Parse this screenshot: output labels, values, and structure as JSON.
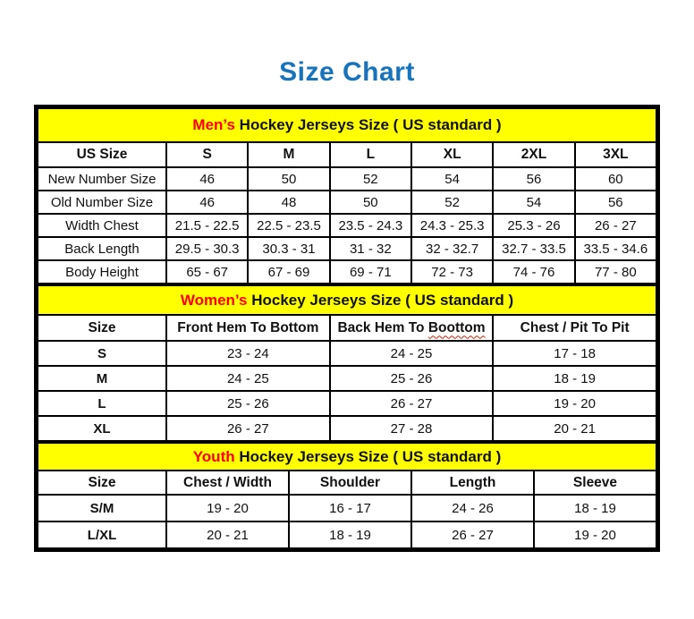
{
  "page": {
    "title": "Size Chart"
  },
  "colors": {
    "title_blue": "#1673bc",
    "band_yellow": "#ffff00",
    "accent_red": "#ff0000",
    "border_black": "#000000"
  },
  "tables": {
    "mens": {
      "band": {
        "highlight": "Men’s",
        "rest": " Hockey Jerseys Size ( US standard )"
      },
      "columns": [
        "US Size",
        "S",
        "M",
        "L",
        "XL",
        "2XL",
        "3XL"
      ],
      "rows": [
        {
          "label": "New Number Size",
          "values": [
            "46",
            "50",
            "52",
            "54",
            "56",
            "60"
          ]
        },
        {
          "label": "Old Number Size",
          "values": [
            "46",
            "48",
            "50",
            "52",
            "54",
            "56"
          ]
        },
        {
          "label": "Width Chest",
          "values": [
            "21.5 - 22.5",
            "22.5 - 23.5",
            "23.5 - 24.3",
            "24.3 - 25.3",
            "25.3 - 26",
            "26 - 27"
          ]
        },
        {
          "label": "Back Length",
          "values": [
            "29.5 - 30.3",
            "30.3 - 31",
            "31 - 32",
            "32 - 32.7",
            "32.7 - 33.5",
            "33.5 - 34.6"
          ]
        },
        {
          "label": "Body Height",
          "values": [
            "65 - 67",
            "67 - 69",
            "69 - 71",
            "72 - 73",
            "74 - 76",
            "77 - 80"
          ]
        }
      ]
    },
    "womens": {
      "band": {
        "highlight": "Women’s",
        "rest": " Hockey Jerseys Size ( US standard )"
      },
      "columns": [
        "Size",
        "Front Hem To Bottom",
        "Back Hem To Boottom",
        "Chest / Pit To Pit"
      ],
      "misspell": {
        "prefix": "Back Hem To ",
        "word": "Boottom"
      },
      "rows": [
        {
          "label": "S",
          "values": [
            "23 - 24",
            "24 - 25",
            "17 - 18"
          ]
        },
        {
          "label": "M",
          "values": [
            "24 - 25",
            "25 - 26",
            "18 - 19"
          ]
        },
        {
          "label": "L",
          "values": [
            "25 - 26",
            "26 - 27",
            "19 - 20"
          ]
        },
        {
          "label": "XL",
          "values": [
            "26 - 27",
            "27 - 28",
            "20 - 21"
          ]
        }
      ]
    },
    "youth": {
      "band": {
        "highlight": "Youth",
        "rest": " Hockey Jerseys Size ( US standard )"
      },
      "columns": [
        "Size",
        "Chest / Width",
        "Shoulder",
        "Length",
        "Sleeve"
      ],
      "rows": [
        {
          "label": "S/M",
          "values": [
            "19 - 20",
            "16 - 17",
            "24 - 26",
            "18 - 19"
          ]
        },
        {
          "label": "L/XL",
          "values": [
            "20 - 21",
            "18 - 19",
            "26 - 27",
            "19 - 20"
          ]
        }
      ]
    }
  }
}
